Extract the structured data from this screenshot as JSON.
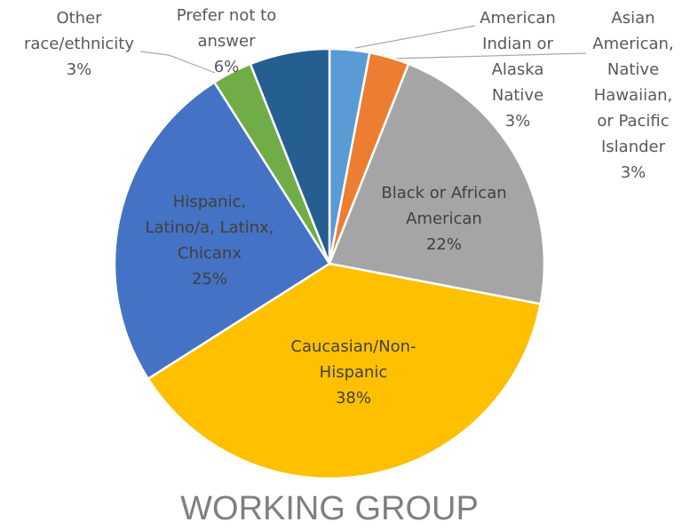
{
  "chart_data": {
    "type": "pie",
    "title": "WORKING GROUP",
    "categories": [
      "American Indian or Alaska Native",
      "Asian American, Native Hawaiian, or Pacific Islander",
      "Black or African American",
      "Caucasian/Non-Hispanic",
      "Hispanic, Latino/a, Latinx, Chicanx",
      "Other race/ethnicity",
      "Prefer not to answer"
    ],
    "values": [
      3,
      3,
      22,
      38,
      25,
      3,
      6
    ],
    "value_labels": [
      "3%",
      "3%",
      "22%",
      "38%",
      "25%",
      "3%",
      "6%"
    ],
    "colors": [
      "#5b9bd5",
      "#ed7d31",
      "#a5a5a5",
      "#ffc000",
      "#4472c4",
      "#70ad47",
      "#255e91"
    ]
  }
}
